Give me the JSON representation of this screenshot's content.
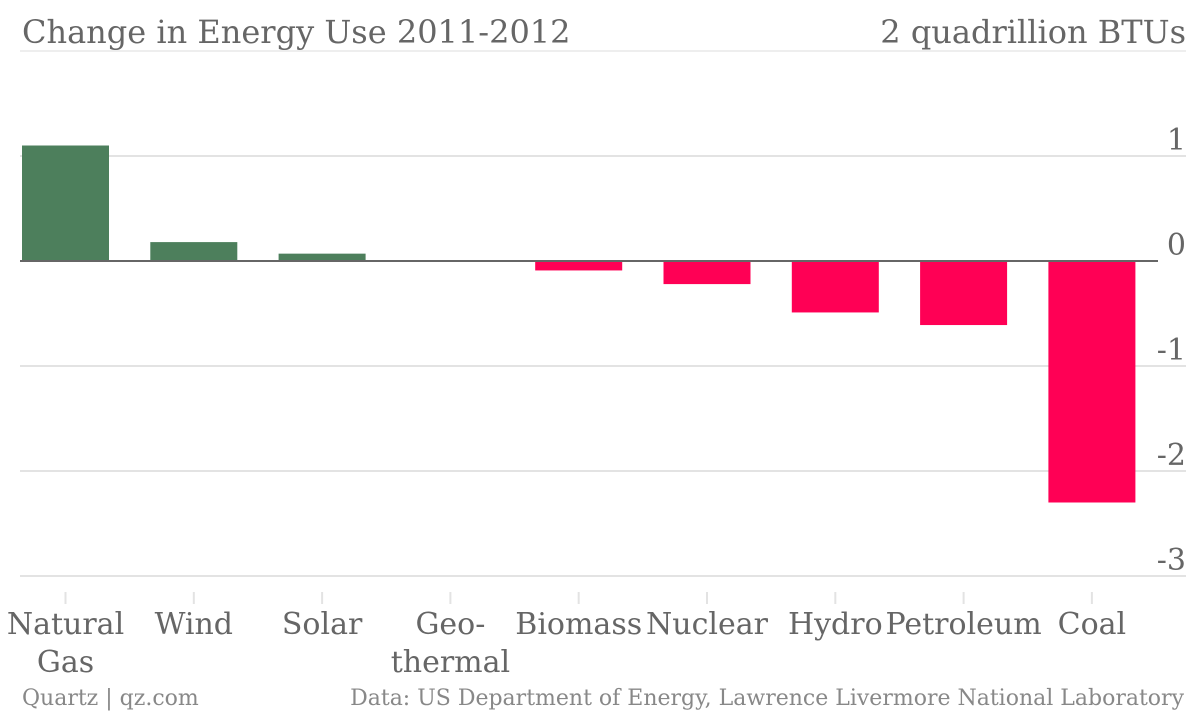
{
  "chart_data": {
    "type": "bar",
    "title": "Change in Energy Use 2011-2012",
    "units": "2 quadrillion BTUs",
    "categories": [
      "Natural Gas",
      "Wind",
      "Solar",
      "Geo-thermal",
      "Biomass",
      "Nuclear",
      "Hydro",
      "Petroleum",
      "Coal"
    ],
    "category_lines": [
      [
        "Natural",
        "Gas"
      ],
      [
        "Wind"
      ],
      [
        "Solar"
      ],
      [
        "Geo-",
        "thermal"
      ],
      [
        "Biomass"
      ],
      [
        "Nuclear"
      ],
      [
        "Hydro"
      ],
      [
        "Petroleum"
      ],
      [
        "Coal"
      ]
    ],
    "values": [
      1.1,
      0.18,
      0.07,
      0.0,
      -0.09,
      -0.22,
      -0.49,
      -0.61,
      -2.3
    ],
    "ylim": [
      -3,
      2
    ],
    "yticks": [
      1,
      0,
      -1,
      -2,
      -3
    ],
    "ytick_labels": [
      "1",
      "0",
      "-1",
      "-2",
      "-3"
    ],
    "grid": true,
    "xlabel": "",
    "ylabel": "",
    "colors": {
      "positive": "#4d7f5c",
      "negative": "#ff0055",
      "grid": "#e3e3e3",
      "zero_line": "#666666",
      "text": "#666666"
    }
  },
  "footer": {
    "source_left": "Quartz | qz.com",
    "source_right": "Data: US Department of Energy, Lawrence Livermore National Laboratory"
  }
}
